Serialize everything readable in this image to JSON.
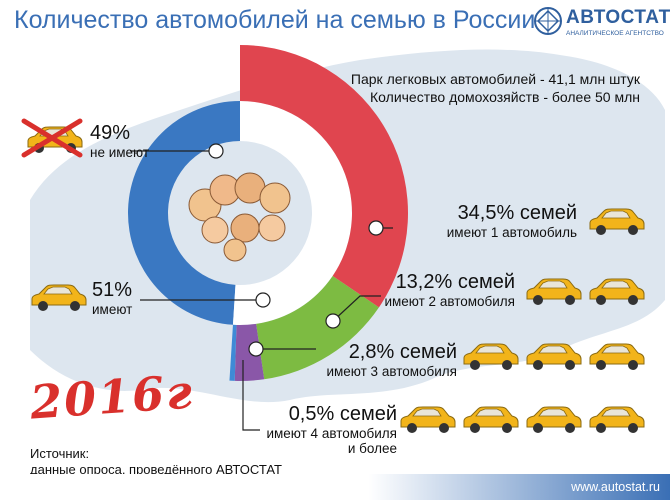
{
  "title": "Количество автомобилей на семью в России",
  "logo": {
    "name": "АВТОСТАТ",
    "tagline": "АНАЛИТИЧЕСКОЕ АГЕНТСТВО"
  },
  "notes": {
    "line1": "Парк легковых автомобилей - 41,1 млн штук",
    "line2": "Количество домохозяйств - более 50 млн"
  },
  "colors": {
    "no_car": "#3a78c2",
    "one_car": "#e0454f",
    "two_cars": "#7dbb42",
    "three_cars": "#8a57a8",
    "four_plus": "#3f8ad6",
    "map": "#dde6ef",
    "car": "#f2b41a"
  },
  "labels": {
    "not_have_pct": "49%",
    "not_have_text": "не имеют",
    "have_pct": "51%",
    "have_text": "имеют",
    "one_pct": "34,5% семей",
    "one_text": "имеют 1 автомобиль",
    "two_pct": "13,2% семей",
    "two_text": "имеют 2 автомобиля",
    "three_pct": "2,8% семей",
    "three_text": "имеют 3 автомобиля",
    "four_pct": "0,5% семей",
    "four_text1": "имеют 4 автомобиля",
    "four_text2": "и более"
  },
  "year": "2016г",
  "source": {
    "line1": "Источник:",
    "line2": "данные опроса, проведённого АВТОСТАТ"
  },
  "site": "www.autostat.ru",
  "chart_data": {
    "type": "pie",
    "title": "Количество автомобилей на семью в России",
    "inner_ring": {
      "categories": [
        "не имеют",
        "имеют"
      ],
      "values": [
        49,
        51
      ]
    },
    "outer_ring": {
      "categories": [
        "имеют 1 автомобиль",
        "имеют 2 автомобиля",
        "имеют 3 автомобиля",
        "имеют 4 автомобиля и более"
      ],
      "values": [
        34.5,
        13.2,
        2.8,
        0.5
      ]
    },
    "car_icons_per_row": [
      1,
      2,
      3,
      4
    ]
  }
}
